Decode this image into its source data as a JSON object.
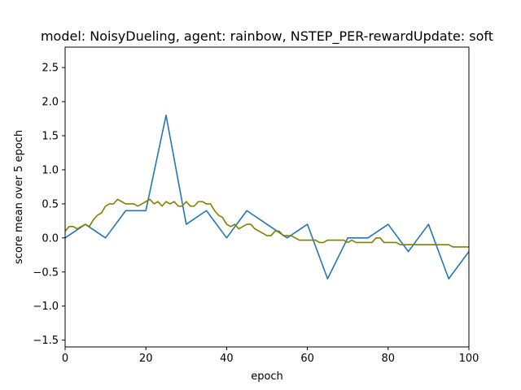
{
  "chart_data": {
    "type": "line",
    "title": "model: NoisyDueling, agent: rainbow, NSTEP_PER-rewardUpdate: soft",
    "xlabel": "epoch",
    "ylabel": "score mean over 5 epoch",
    "xlim": [
      0,
      100
    ],
    "ylim": [
      -1.6,
      2.8
    ],
    "xticks": [
      0,
      20,
      40,
      60,
      80,
      100
    ],
    "xtick_labels": [
      "0",
      "20",
      "40",
      "60",
      "80",
      "100"
    ],
    "yticks": [
      -1.5,
      -1.0,
      -0.5,
      0.0,
      0.5,
      1.0,
      1.5,
      2.0,
      2.5
    ],
    "ytick_labels": [
      "−1.5",
      "−1.0",
      "−0.5",
      "0.0",
      "0.5",
      "1.0",
      "1.5",
      "2.0",
      "2.5"
    ],
    "grid": false,
    "series": [
      {
        "color": "#1f77b4",
        "x": [
          0,
          5,
          10,
          15,
          20,
          25,
          30,
          35,
          40,
          45,
          50,
          55,
          60,
          65,
          70,
          75,
          80,
          85,
          90,
          95,
          100
        ],
        "y": [
          0.0,
          0.2,
          0.0,
          0.4,
          0.4,
          1.8,
          0.2,
          0.4,
          0.0,
          0.4,
          0.2,
          0.0,
          0.2,
          -0.6,
          0.0,
          0.0,
          0.2,
          -0.2,
          0.2,
          -0.6,
          -0.2
        ]
      },
      {
        "color": "#808000",
        "x": [
          0,
          1,
          2,
          3,
          4,
          5,
          6,
          7,
          8,
          9,
          10,
          11,
          12,
          13,
          14,
          15,
          16,
          17,
          18,
          19,
          20,
          21,
          22,
          23,
          24,
          25,
          26,
          27,
          28,
          29,
          30,
          31,
          32,
          33,
          34,
          35,
          36,
          37,
          38,
          39,
          40,
          41,
          42,
          43,
          44,
          45,
          46,
          47,
          48,
          49,
          50,
          51,
          52,
          53,
          54,
          55,
          56,
          57,
          58,
          59,
          60,
          61,
          62,
          63,
          64,
          65,
          66,
          67,
          68,
          69,
          70,
          71,
          72,
          73,
          74,
          75,
          76,
          77,
          78,
          79,
          80,
          81,
          82,
          83,
          84,
          85,
          86,
          87,
          88,
          89,
          90,
          91,
          92,
          93,
          94,
          95,
          96,
          97,
          98,
          99,
          100
        ],
        "y": [
          0.1,
          0.167,
          0.167,
          0.133,
          0.167,
          0.2,
          0.167,
          0.267,
          0.333,
          0.367,
          0.467,
          0.5,
          0.5,
          0.567,
          0.533,
          0.5,
          0.5,
          0.5,
          0.467,
          0.5,
          0.533,
          0.567,
          0.5,
          0.533,
          0.467,
          0.533,
          0.5,
          0.533,
          0.467,
          0.467,
          0.533,
          0.467,
          0.467,
          0.533,
          0.533,
          0.5,
          0.5,
          0.4,
          0.333,
          0.3,
          0.2,
          0.167,
          0.2,
          0.133,
          0.167,
          0.2,
          0.2,
          0.133,
          0.1,
          0.067,
          0.033,
          0.033,
          0.1,
          0.1,
          0.033,
          0.033,
          0.033,
          0.0,
          -0.033,
          -0.033,
          -0.033,
          -0.033,
          -0.033,
          -0.067,
          -0.067,
          -0.033,
          -0.033,
          -0.033,
          -0.033,
          -0.033,
          -0.067,
          -0.033,
          -0.067,
          -0.067,
          -0.067,
          -0.067,
          -0.067,
          0.0,
          0.0,
          -0.067,
          -0.067,
          -0.067,
          -0.067,
          -0.1,
          -0.1,
          -0.1,
          -0.1,
          -0.1,
          -0.1,
          -0.1,
          -0.1,
          -0.1,
          -0.1,
          -0.1,
          -0.1,
          -0.1,
          -0.133,
          -0.133,
          -0.133,
          -0.133,
          -0.133
        ]
      }
    ]
  }
}
